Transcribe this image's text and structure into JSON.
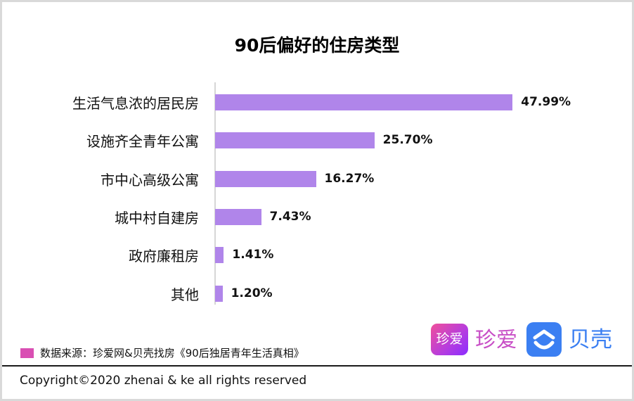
{
  "title": "90后偏好的住房类型",
  "chart_data": {
    "type": "bar",
    "orientation": "horizontal",
    "title": "90后偏好的住房类型",
    "categories": [
      "生活气息浓的居民房",
      "设施齐全青年公寓",
      "市中心高级公寓",
      "城中村自建房",
      "政府廉租房",
      "其他"
    ],
    "values": [
      47.99,
      25.7,
      16.27,
      7.43,
      1.41,
      1.2
    ],
    "value_labels": [
      "47.99%",
      "25.70%",
      "16.27%",
      "7.43%",
      "1.41%",
      "1.20%"
    ],
    "unit": "%",
    "xlabel": "",
    "ylabel": "",
    "grid": false,
    "bar_color": "#b085ea",
    "legend": []
  },
  "rows": [
    {
      "label": "生活气息浓的居民房",
      "value": 47.99,
      "text": "47.99%"
    },
    {
      "label": "设施齐全青年公寓",
      "value": 25.7,
      "text": "25.70%"
    },
    {
      "label": "市中心高级公寓",
      "value": 16.27,
      "text": "16.27%"
    },
    {
      "label": "城中村自建房",
      "value": 7.43,
      "text": "7.43%"
    },
    {
      "label": "政府廉租房",
      "value": 1.41,
      "text": "1.41%"
    },
    {
      "label": "其他",
      "value": 1.2,
      "text": "1.20%"
    }
  ],
  "source": {
    "swatch_color": "#d94fb3",
    "text": "数据来源：珍爱网&贝壳找房《90后独居青年生活真相》"
  },
  "logos": {
    "zhenai_icon_text": "珍爱",
    "zhenai_text": "珍爱",
    "ke_text": "贝壳"
  },
  "footer": {
    "copyright": "Copyright©2020 zhenai & ke all rights reserved"
  }
}
